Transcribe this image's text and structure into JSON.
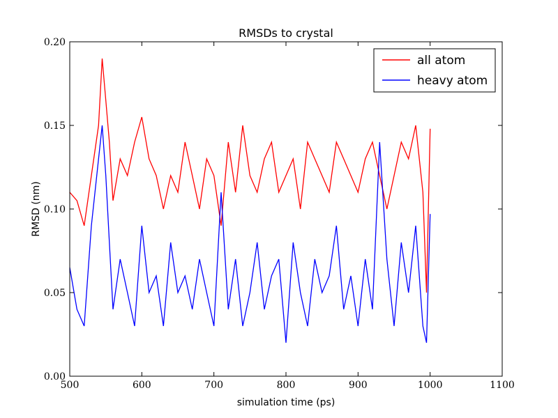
{
  "chart_data": {
    "type": "line",
    "title": "RMSDs to crystal",
    "xlabel": "simulation time (ps)",
    "ylabel": "RMSD (nm)",
    "xlim": [
      500,
      1100
    ],
    "ylim": [
      0.0,
      0.2
    ],
    "x_ticks": [
      "500",
      "600",
      "700",
      "800",
      "900",
      "1000",
      "1100"
    ],
    "y_ticks": [
      "0.00",
      "0.05",
      "0.10",
      "0.15",
      "0.20"
    ],
    "grid": false,
    "legend_position": "top-right",
    "x": [
      500,
      510,
      520,
      530,
      540,
      545,
      550,
      555,
      560,
      570,
      580,
      590,
      600,
      610,
      620,
      630,
      640,
      650,
      660,
      670,
      680,
      690,
      700,
      710,
      720,
      730,
      740,
      750,
      760,
      770,
      780,
      790,
      800,
      810,
      820,
      830,
      840,
      850,
      860,
      870,
      880,
      890,
      900,
      910,
      920,
      930,
      940,
      950,
      960,
      970,
      980,
      990,
      995,
      1000
    ],
    "series": [
      {
        "name": "all atom",
        "color": "#ff0000",
        "values": [
          0.11,
          0.105,
          0.09,
          0.12,
          0.15,
          0.19,
          0.165,
          0.14,
          0.105,
          0.13,
          0.12,
          0.14,
          0.155,
          0.13,
          0.12,
          0.1,
          0.12,
          0.11,
          0.14,
          0.12,
          0.1,
          0.13,
          0.12,
          0.09,
          0.14,
          0.11,
          0.15,
          0.12,
          0.11,
          0.13,
          0.14,
          0.11,
          0.12,
          0.13,
          0.1,
          0.14,
          0.13,
          0.12,
          0.11,
          0.14,
          0.13,
          0.12,
          0.11,
          0.13,
          0.14,
          0.12,
          0.1,
          0.12,
          0.14,
          0.13,
          0.15,
          0.11,
          0.05,
          0.148
        ]
      },
      {
        "name": "heavy atom",
        "color": "#0000ff",
        "values": [
          0.065,
          0.04,
          0.03,
          0.09,
          0.13,
          0.15,
          0.12,
          0.08,
          0.04,
          0.07,
          0.05,
          0.03,
          0.09,
          0.05,
          0.06,
          0.03,
          0.08,
          0.05,
          0.06,
          0.04,
          0.07,
          0.05,
          0.03,
          0.11,
          0.04,
          0.07,
          0.03,
          0.05,
          0.08,
          0.04,
          0.06,
          0.07,
          0.02,
          0.08,
          0.05,
          0.03,
          0.07,
          0.05,
          0.06,
          0.09,
          0.04,
          0.06,
          0.03,
          0.07,
          0.04,
          0.14,
          0.07,
          0.03,
          0.08,
          0.05,
          0.09,
          0.03,
          0.02,
          0.097
        ]
      }
    ]
  }
}
